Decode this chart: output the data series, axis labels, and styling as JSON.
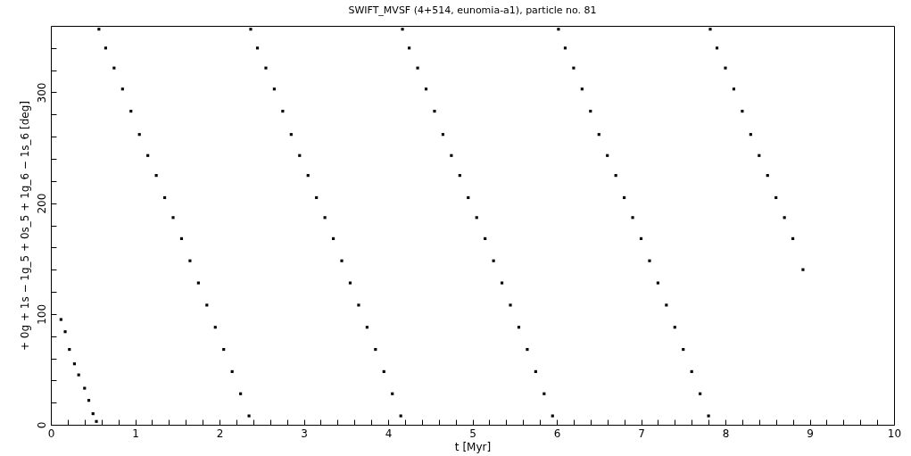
{
  "chart_data": {
    "type": "scatter",
    "title": "SWIFT_MVSF (4+514, eunomia-a1), particle no. 81",
    "xlabel": "t [Myr]",
    "ylabel": "+ 0g + 1s − 1g_5 + 0s_5 + 1g_6 − 1s_6 [deg]",
    "xlim": [
      0,
      10
    ],
    "ylim": [
      0,
      360
    ],
    "xticks": [
      0,
      {
        "value": 0.2,
        "label": null
      },
      {
        "value": 0.4,
        "label": null
      },
      {
        "value": 0.6,
        "label": null
      },
      {
        "value": 0.8,
        "label": null
      },
      1,
      {
        "value": 1.2,
        "label": null
      },
      {
        "value": 1.4,
        "label": null
      },
      {
        "value": 1.6,
        "label": null
      },
      {
        "value": 1.8,
        "label": null
      },
      2,
      {
        "value": 2.2,
        "label": null
      },
      {
        "value": 2.4,
        "label": null
      },
      {
        "value": 2.6,
        "label": null
      },
      {
        "value": 2.8,
        "label": null
      },
      3,
      {
        "value": 3.2,
        "label": null
      },
      {
        "value": 3.4,
        "label": null
      },
      {
        "value": 3.6,
        "label": null
      },
      {
        "value": 3.8,
        "label": null
      },
      4,
      {
        "value": 4.2,
        "label": null
      },
      {
        "value": 4.4,
        "label": null
      },
      {
        "value": 4.6,
        "label": null
      },
      {
        "value": 4.8,
        "label": null
      },
      5,
      {
        "value": 5.2,
        "label": null
      },
      {
        "value": 5.4,
        "label": null
      },
      {
        "value": 5.6,
        "label": null
      },
      {
        "value": 5.8,
        "label": null
      },
      6,
      {
        "value": 6.2,
        "label": null
      },
      {
        "value": 6.4,
        "label": null
      },
      {
        "value": 6.6,
        "label": null
      },
      {
        "value": 6.8,
        "label": null
      },
      7,
      {
        "value": 7.2,
        "label": null
      },
      {
        "value": 7.4,
        "label": null
      },
      {
        "value": 7.6,
        "label": null
      },
      {
        "value": 7.8,
        "label": null
      },
      8,
      {
        "value": 8.2,
        "label": null
      },
      {
        "value": 8.4,
        "label": null
      },
      {
        "value": 8.6,
        "label": null
      },
      {
        "value": 8.8,
        "label": null
      },
      9,
      {
        "value": 9.2,
        "label": null
      },
      {
        "value": 9.4,
        "label": null
      },
      {
        "value": 9.6,
        "label": null
      },
      {
        "value": 9.8,
        "label": null
      },
      10
    ],
    "yticks": [
      0,
      {
        "value": 20,
        "label": null
      },
      {
        "value": 40,
        "label": null
      },
      {
        "value": 60,
        "label": null
      },
      {
        "value": 80,
        "label": null
      },
      100,
      {
        "value": 120,
        "label": null
      },
      {
        "value": 140,
        "label": null
      },
      {
        "value": 160,
        "label": null
      },
      {
        "value": 180,
        "label": null
      },
      200,
      {
        "value": 220,
        "label": null
      },
      {
        "value": 240,
        "label": null
      },
      {
        "value": 260,
        "label": null
      },
      {
        "value": 280,
        "label": null
      },
      300,
      {
        "value": 320,
        "label": null
      },
      {
        "value": 340,
        "label": null
      }
    ],
    "grid": false,
    "legend": false,
    "marker": "square",
    "series": [
      {
        "color": "#000000",
        "x": [
          0.12,
          0.17,
          0.22,
          0.28,
          0.33,
          0.4,
          0.45,
          0.5,
          0.54,
          0.57,
          0.65,
          0.75,
          0.85,
          0.95,
          1.05,
          1.15,
          1.25,
          1.35,
          1.45,
          1.55,
          1.65,
          1.75,
          1.85,
          1.95,
          2.05,
          2.15,
          2.25,
          2.35,
          2.37,
          2.45,
          2.55,
          2.65,
          2.75,
          2.85,
          2.95,
          3.05,
          3.15,
          3.25,
          3.35,
          3.45,
          3.55,
          3.65,
          3.75,
          3.85,
          3.95,
          4.05,
          4.15,
          4.17,
          4.25,
          4.35,
          4.45,
          4.55,
          4.65,
          4.75,
          4.85,
          4.95,
          5.05,
          5.15,
          5.25,
          5.35,
          5.45,
          5.55,
          5.65,
          5.75,
          5.85,
          5.95,
          6.02,
          6.1,
          6.2,
          6.3,
          6.4,
          6.5,
          6.6,
          6.7,
          6.8,
          6.9,
          7.0,
          7.1,
          7.2,
          7.3,
          7.4,
          7.5,
          7.6,
          7.7,
          7.8,
          7.82,
          7.9,
          8.0,
          8.1,
          8.2,
          8.3,
          8.4,
          8.5,
          8.6,
          8.7,
          8.8,
          8.92
        ],
        "values": [
          95,
          84,
          68,
          55,
          45,
          33,
          22,
          10,
          3,
          357,
          340,
          322,
          303,
          283,
          262,
          243,
          225,
          205,
          187,
          168,
          148,
          128,
          108,
          88,
          68,
          48,
          28,
          8,
          357,
          340,
          322,
          303,
          283,
          262,
          243,
          225,
          205,
          187,
          168,
          148,
          128,
          108,
          88,
          68,
          48,
          28,
          8,
          357,
          340,
          322,
          303,
          283,
          262,
          243,
          225,
          205,
          187,
          168,
          148,
          128,
          108,
          88,
          68,
          48,
          28,
          8,
          357,
          340,
          322,
          303,
          283,
          262,
          243,
          225,
          205,
          187,
          168,
          148,
          128,
          108,
          88,
          68,
          48,
          28,
          8,
          357,
          340,
          322,
          303,
          283,
          262,
          243,
          225,
          205,
          187,
          168,
          140
        ]
      }
    ]
  }
}
